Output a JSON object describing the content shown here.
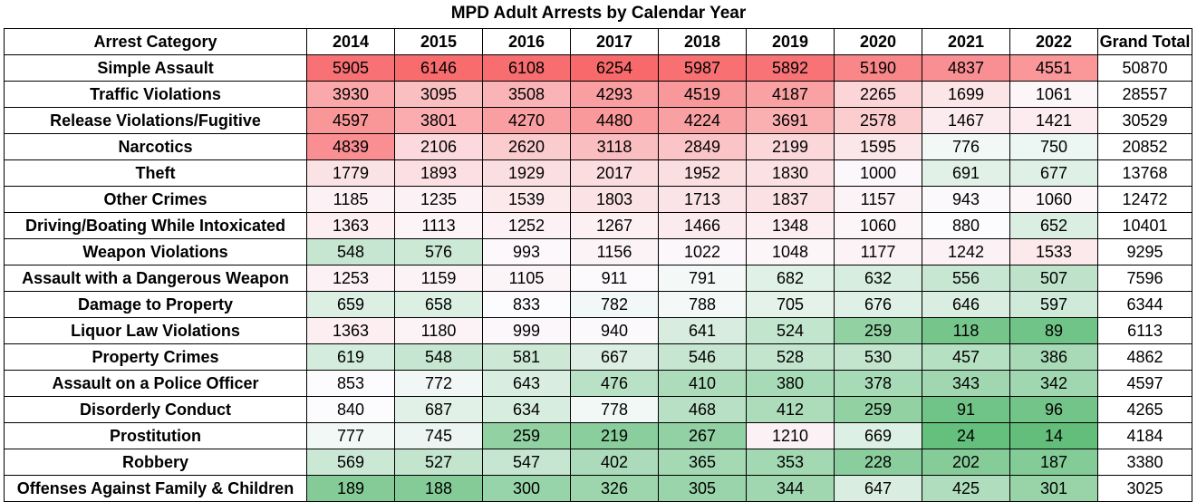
{
  "title": "MPD Adult Arrests by Calendar Year",
  "header": {
    "category": "Arrest Category",
    "years": [
      "2014",
      "2015",
      "2016",
      "2017",
      "2018",
      "2019",
      "2020",
      "2021",
      "2022"
    ],
    "total": "Grand Total"
  },
  "rows": [
    {
      "category": "Simple Assault",
      "values": [
        5905,
        6146,
        6108,
        6254,
        5987,
        5892,
        5190,
        4837,
        4551
      ],
      "total": 50870
    },
    {
      "category": "Traffic Violations",
      "values": [
        3930,
        3095,
        3508,
        4293,
        4519,
        4187,
        2265,
        1699,
        1061
      ],
      "total": 28557
    },
    {
      "category": "Release Violations/Fugitive",
      "values": [
        4597,
        3801,
        4270,
        4480,
        4224,
        3691,
        2578,
        1467,
        1421
      ],
      "total": 30529
    },
    {
      "category": "Narcotics",
      "values": [
        4839,
        2106,
        2620,
        3118,
        2849,
        2199,
        1595,
        776,
        750
      ],
      "total": 20852
    },
    {
      "category": "Theft",
      "values": [
        1779,
        1893,
        1929,
        2017,
        1952,
        1830,
        1000,
        691,
        677
      ],
      "total": 13768
    },
    {
      "category": "Other Crimes",
      "values": [
        1185,
        1235,
        1539,
        1803,
        1713,
        1837,
        1157,
        943,
        1060
      ],
      "total": 12472
    },
    {
      "category": "Driving/Boating While Intoxicated",
      "values": [
        1363,
        1113,
        1252,
        1267,
        1466,
        1348,
        1060,
        880,
        652
      ],
      "total": 10401
    },
    {
      "category": "Weapon Violations",
      "values": [
        548,
        576,
        993,
        1156,
        1022,
        1048,
        1177,
        1242,
        1533
      ],
      "total": 9295
    },
    {
      "category": "Assault with a Dangerous Weapon",
      "values": [
        1253,
        1159,
        1105,
        911,
        791,
        682,
        632,
        556,
        507
      ],
      "total": 7596
    },
    {
      "category": "Damage to Property",
      "values": [
        659,
        658,
        833,
        782,
        788,
        705,
        676,
        646,
        597
      ],
      "total": 6344
    },
    {
      "category": "Liquor Law Violations",
      "values": [
        1363,
        1180,
        999,
        940,
        641,
        524,
        259,
        118,
        89
      ],
      "total": 6113
    },
    {
      "category": "Property Crimes",
      "values": [
        619,
        548,
        581,
        667,
        546,
        528,
        530,
        457,
        386
      ],
      "total": 4862
    },
    {
      "category": "Assault on a Police Officer",
      "values": [
        853,
        772,
        643,
        476,
        410,
        380,
        378,
        343,
        342
      ],
      "total": 4597
    },
    {
      "category": "Disorderly Conduct",
      "values": [
        840,
        687,
        634,
        778,
        468,
        412,
        259,
        91,
        96
      ],
      "total": 4265
    },
    {
      "category": "Prostitution",
      "values": [
        777,
        745,
        259,
        219,
        267,
        1210,
        669,
        24,
        14
      ],
      "total": 4184
    },
    {
      "category": "Robbery",
      "values": [
        569,
        527,
        547,
        402,
        365,
        353,
        228,
        202,
        187
      ],
      "total": 3380
    },
    {
      "category": "Offenses Against Family & Children",
      "values": [
        189,
        188,
        300,
        326,
        305,
        344,
        647,
        425,
        301
      ],
      "total": 3025
    }
  ],
  "colors": {
    "high": "#f8696b",
    "mid": "#fcfcff",
    "low": "#63be7b"
  }
}
